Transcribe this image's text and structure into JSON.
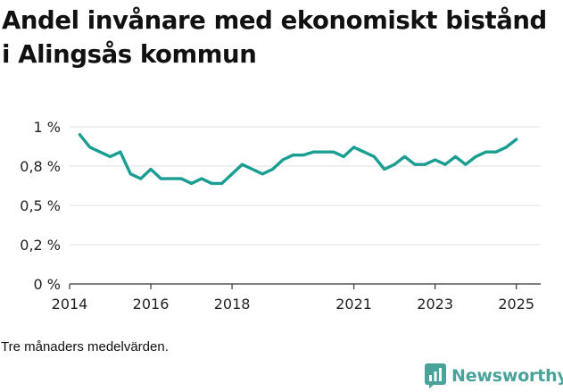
{
  "title": "Andel invånare med ekonomiskt bistånd i Alingsås kommun",
  "footnote": "Tre månaders medelvärden.",
  "brand": {
    "name": "Newsworthy",
    "icon": "newsworthy-logo-icon",
    "color": "#4aa39a"
  },
  "colors": {
    "line": "#1a9e91",
    "axis": "#333333",
    "grid": "#e0e0e0"
  },
  "chart_data": {
    "type": "line",
    "title": "Andel invånare med ekonomiskt bistånd i Alingsås kommun",
    "xlabel": "",
    "ylabel": "",
    "xlim": [
      2014,
      2025.6
    ],
    "ylim": [
      0,
      1.0
    ],
    "yticks": [
      0,
      0.25,
      0.5,
      0.75,
      1.0
    ],
    "ytick_labels": [
      "0 %",
      "0,2 %",
      "0,5 %",
      "0,8 %",
      "1 %"
    ],
    "xticks": [
      2014,
      2016,
      2018,
      2021,
      2023,
      2025
    ],
    "xtick_labels": [
      "2014",
      "2016",
      "2018",
      "2021",
      "2023",
      "2025"
    ],
    "series": [
      {
        "name": "Andel invånare med ekonomiskt bistånd",
        "x": [
          2014.25,
          2014.5,
          2014.75,
          2015.0,
          2015.25,
          2015.5,
          2015.75,
          2016.0,
          2016.25,
          2016.5,
          2016.75,
          2017.0,
          2017.25,
          2017.5,
          2017.75,
          2018.0,
          2018.25,
          2018.5,
          2018.75,
          2019.0,
          2019.25,
          2019.5,
          2019.75,
          2020.0,
          2020.25,
          2020.5,
          2020.75,
          2021.0,
          2021.25,
          2021.5,
          2021.75,
          2022.0,
          2022.25,
          2022.5,
          2022.75,
          2023.0,
          2023.25,
          2023.5,
          2023.75,
          2024.0,
          2024.25,
          2024.5,
          2024.75,
          2025.0
        ],
        "values": [
          0.95,
          0.87,
          0.84,
          0.81,
          0.84,
          0.7,
          0.67,
          0.73,
          0.67,
          0.67,
          0.67,
          0.64,
          0.67,
          0.64,
          0.64,
          0.7,
          0.76,
          0.73,
          0.7,
          0.73,
          0.79,
          0.82,
          0.82,
          0.84,
          0.84,
          0.84,
          0.81,
          0.87,
          0.84,
          0.81,
          0.73,
          0.76,
          0.81,
          0.76,
          0.76,
          0.79,
          0.76,
          0.81,
          0.76,
          0.81,
          0.84,
          0.84,
          0.87,
          0.92
        ]
      }
    ]
  }
}
